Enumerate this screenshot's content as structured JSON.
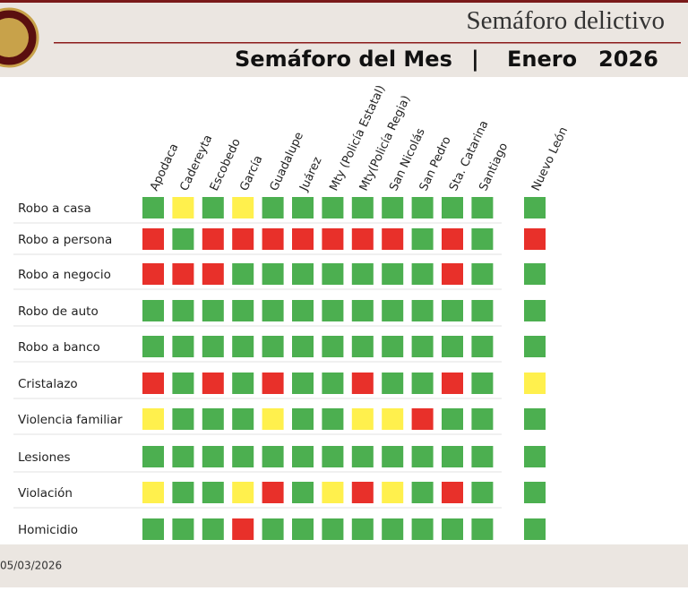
{
  "header": {
    "title": "Semáforo delictivo",
    "subtitle": "Semáforo del Mes",
    "month": "Enero",
    "year": "2026"
  },
  "table": {
    "columns": [
      "Apodaca",
      "Cadereyta",
      "Escobedo",
      "García",
      "Guadalupe",
      "Juárez",
      "Mty (Policía Estatal)",
      "Mty(Policía Regia)",
      "San Nicolás",
      "San Pedro",
      "Sta. Catarina",
      "Santiago"
    ],
    "total_column": "Nuevo León",
    "colors": {
      "G": "#4caf50",
      "Y": "#fff04d",
      "R": "#e8302a"
    },
    "rows": [
      {
        "label": "Robo a casa",
        "cells": [
          "G",
          "Y",
          "G",
          "Y",
          "G",
          "G",
          "G",
          "G",
          "G",
          "G",
          "G",
          "G"
        ],
        "total": "G"
      },
      {
        "label": "Robo a persona",
        "cells": [
          "R",
          "G",
          "R",
          "R",
          "R",
          "R",
          "R",
          "R",
          "R",
          "G",
          "R",
          "G"
        ],
        "total": "R"
      },
      {
        "label": "Robo a negocio",
        "cells": [
          "R",
          "R",
          "R",
          "G",
          "G",
          "G",
          "G",
          "G",
          "G",
          "G",
          "R",
          "G"
        ],
        "total": "G"
      },
      {
        "label": "Robo de auto",
        "cells": [
          "G",
          "G",
          "G",
          "G",
          "G",
          "G",
          "G",
          "G",
          "G",
          "G",
          "G",
          "G"
        ],
        "total": "G"
      },
      {
        "label": "Robo a banco",
        "cells": [
          "G",
          "G",
          "G",
          "G",
          "G",
          "G",
          "G",
          "G",
          "G",
          "G",
          "G",
          "G"
        ],
        "total": "G"
      },
      {
        "label": "Cristalazo",
        "cells": [
          "R",
          "G",
          "R",
          "G",
          "R",
          "G",
          "G",
          "R",
          "G",
          "G",
          "R",
          "G"
        ],
        "total": "Y"
      },
      {
        "label": "Violencia familiar",
        "cells": [
          "Y",
          "G",
          "G",
          "G",
          "Y",
          "G",
          "G",
          "Y",
          "Y",
          "R",
          "G",
          "G"
        ],
        "total": "G"
      },
      {
        "label": "Lesiones",
        "cells": [
          "G",
          "G",
          "G",
          "G",
          "G",
          "G",
          "G",
          "G",
          "G",
          "G",
          "G",
          "G"
        ],
        "total": "G"
      },
      {
        "label": "Violación",
        "cells": [
          "Y",
          "G",
          "G",
          "Y",
          "R",
          "G",
          "Y",
          "R",
          "Y",
          "G",
          "R",
          "G"
        ],
        "total": "G"
      },
      {
        "label": "Homicidio",
        "cells": [
          "G",
          "G",
          "G",
          "R",
          "G",
          "G",
          "G",
          "G",
          "G",
          "G",
          "G",
          "G"
        ],
        "total": "G"
      }
    ]
  },
  "footer": {
    "date": "05/03/2026"
  }
}
